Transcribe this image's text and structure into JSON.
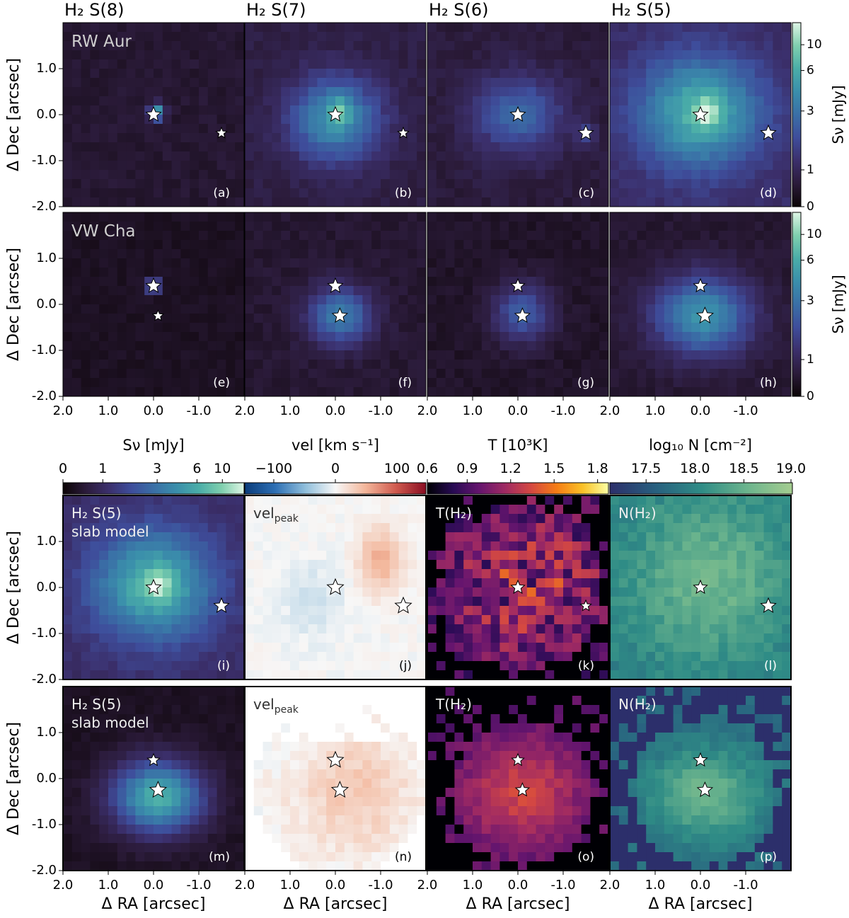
{
  "chart_data": {
    "type": "heatmap",
    "column_titles": [
      "H₂ S(8)",
      "H₂ S(7)",
      "H₂ S(6)",
      "H₂ S(5)"
    ],
    "row_labels": [
      "RW Aur",
      "VW Cha"
    ],
    "ylabel": "Δ Dec [arcsec]",
    "xlabel": "Δ RA [arcsec]",
    "y_ticks": [
      "1.0",
      "0.0",
      "-1.0",
      "-2.0"
    ],
    "x_ticks_first": [
      "2.0",
      "1.0",
      "0.0",
      "-1.0"
    ],
    "x_ticks_other": [
      "2.0",
      "1.0",
      "0.0",
      "-1.0"
    ],
    "x_ticks_last": [
      "2.0",
      "1.0",
      "0.0",
      "-1.0"
    ],
    "xlim": [
      2.0,
      -2.0
    ],
    "ylim": [
      -2.0,
      2.0
    ],
    "top_colorbar": {
      "label": "Sν [mJy]",
      "ticks": [
        "10",
        "6",
        "3",
        "1",
        "0"
      ]
    },
    "bottom_colorbars": [
      {
        "label": "Sν [mJy]",
        "ticks": [
          "0",
          "1",
          "3",
          "6",
          "10"
        ],
        "cmap": "mako"
      },
      {
        "label": "vel [km s⁻¹]",
        "ticks": [
          "−100",
          "0",
          "100"
        ],
        "cmap": "rdbu"
      },
      {
        "label": "T [10³K]",
        "ticks": [
          "0.6",
          "0.9",
          "1.2",
          "1.5",
          "1.8"
        ],
        "cmap": "inferno"
      },
      {
        "label": "log₁₀ N [cm⁻²]",
        "ticks": [
          "17.5",
          "18.0",
          "18.5",
          "19.0"
        ],
        "cmap": "crest"
      }
    ],
    "panels": [
      {
        "letter": "(a)",
        "row": 0,
        "col": 0,
        "cmap": "mako",
        "sources": [
          {
            "ra": 0.0,
            "dec": 0.0,
            "size": 11
          },
          {
            "ra": -1.5,
            "dec": -0.4,
            "size": 8
          }
        ]
      },
      {
        "letter": "(b)",
        "row": 0,
        "col": 1,
        "cmap": "mako",
        "sources": [
          {
            "ra": 0.0,
            "dec": 0.0,
            "size": 11
          },
          {
            "ra": -1.5,
            "dec": -0.4,
            "size": 8
          }
        ]
      },
      {
        "letter": "(c)",
        "row": 0,
        "col": 2,
        "cmap": "mako",
        "sources": [
          {
            "ra": 0.0,
            "dec": 0.0,
            "size": 11
          },
          {
            "ra": -1.5,
            "dec": -0.4,
            "size": 11
          }
        ]
      },
      {
        "letter": "(d)",
        "row": 0,
        "col": 3,
        "cmap": "mako",
        "sources": [
          {
            "ra": 0.0,
            "dec": 0.0,
            "size": 11
          },
          {
            "ra": -1.5,
            "dec": -0.4,
            "size": 11
          }
        ]
      },
      {
        "letter": "(e)",
        "row": 1,
        "col": 0,
        "cmap": "mako",
        "sources": [
          {
            "ra": 0.0,
            "dec": 0.4,
            "size": 11
          },
          {
            "ra": -0.1,
            "dec": -0.25,
            "size": 8
          }
        ]
      },
      {
        "letter": "(f)",
        "row": 1,
        "col": 1,
        "cmap": "mako",
        "sources": [
          {
            "ra": 0.0,
            "dec": 0.4,
            "size": 11
          },
          {
            "ra": -0.1,
            "dec": -0.25,
            "size": 11
          }
        ]
      },
      {
        "letter": "(g)",
        "row": 1,
        "col": 2,
        "cmap": "mako",
        "sources": [
          {
            "ra": 0.0,
            "dec": 0.4,
            "size": 10
          },
          {
            "ra": -0.1,
            "dec": -0.25,
            "size": 11
          }
        ]
      },
      {
        "letter": "(h)",
        "row": 1,
        "col": 3,
        "cmap": "mako",
        "sources": [
          {
            "ra": 0.0,
            "dec": 0.4,
            "size": 10
          },
          {
            "ra": -0.1,
            "dec": -0.25,
            "size": 12
          }
        ]
      },
      {
        "letter": "(i)",
        "row": 2,
        "col": 0,
        "cmap": "mako",
        "label": "H₂ S(5)",
        "label2": "slab model",
        "sources": [
          {
            "ra": 0.0,
            "dec": 0.0,
            "size": 11
          },
          {
            "ra": -1.5,
            "dec": -0.4,
            "size": 11
          }
        ]
      },
      {
        "letter": "(j)",
        "row": 2,
        "col": 1,
        "cmap": "rdbu",
        "label": "vel",
        "label_sub": "peak",
        "sources": [
          {
            "ra": 0.0,
            "dec": 0.0,
            "size": 12
          },
          {
            "ra": -1.5,
            "dec": -0.4,
            "size": 12
          }
        ]
      },
      {
        "letter": "(k)",
        "row": 2,
        "col": 2,
        "cmap": "inferno",
        "label": "T(H₂)",
        "sources": [
          {
            "ra": 0.0,
            "dec": 0.0,
            "size": 10
          },
          {
            "ra": -1.5,
            "dec": -0.4,
            "size": 8
          }
        ]
      },
      {
        "letter": "(l)",
        "row": 2,
        "col": 3,
        "cmap": "crest",
        "label": "N(H₂)",
        "sources": [
          {
            "ra": 0.0,
            "dec": 0.0,
            "size": 10
          },
          {
            "ra": -1.5,
            "dec": -0.4,
            "size": 11
          }
        ]
      },
      {
        "letter": "(m)",
        "row": 3,
        "col": 0,
        "cmap": "mako",
        "label": "H₂ S(5)",
        "label2": "slab model",
        "sources": [
          {
            "ra": 0.0,
            "dec": 0.4,
            "size": 9
          },
          {
            "ra": -0.1,
            "dec": -0.25,
            "size": 12
          }
        ]
      },
      {
        "letter": "(n)",
        "row": 3,
        "col": 1,
        "cmap": "rdbu",
        "label": "vel",
        "label_sub": "peak",
        "sources": [
          {
            "ra": 0.0,
            "dec": 0.4,
            "size": 12
          },
          {
            "ra": -0.1,
            "dec": -0.25,
            "size": 12
          }
        ]
      },
      {
        "letter": "(o)",
        "row": 3,
        "col": 2,
        "cmap": "inferno",
        "label": "T(H₂)",
        "sources": [
          {
            "ra": 0.0,
            "dec": 0.4,
            "size": 9
          },
          {
            "ra": -0.1,
            "dec": -0.25,
            "size": 10
          }
        ]
      },
      {
        "letter": "(p)",
        "row": 3,
        "col": 3,
        "cmap": "crest",
        "label": "N(H₂)",
        "sources": [
          {
            "ra": 0.0,
            "dec": 0.4,
            "size": 10
          },
          {
            "ra": -0.1,
            "dec": -0.25,
            "size": 11
          }
        ]
      }
    ]
  },
  "colors": {
    "mako": [
      "#0b0405",
      "#2b1b3a",
      "#3b2f6b",
      "#3e4d9b",
      "#3a6fa6",
      "#3a8eab",
      "#4aada8",
      "#7fcfae",
      "#def5e5"
    ],
    "rdbu": [
      "#0b3c7a",
      "#2d6fb4",
      "#8fbedb",
      "#f7f7f7",
      "#f3b69a",
      "#d05b4f",
      "#8a0d22"
    ],
    "inferno": [
      "#000004",
      "#280b54",
      "#65156e",
      "#9f2a63",
      "#d44842",
      "#f57d15",
      "#fac127",
      "#fcffa4"
    ],
    "crest": [
      "#2c2f6b",
      "#28607f",
      "#2f8c86",
      "#6bb48d",
      "#a5cd90"
    ]
  }
}
